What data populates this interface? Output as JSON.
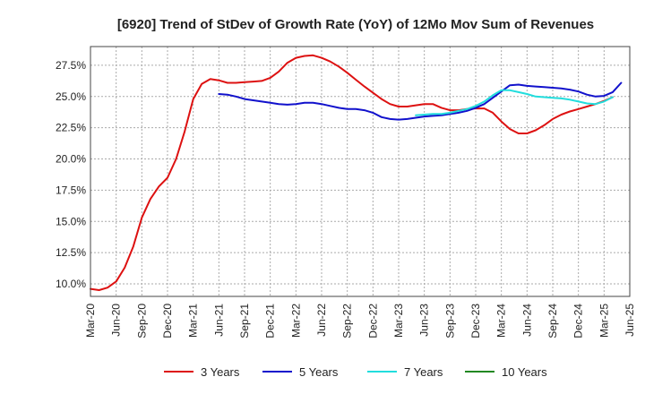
{
  "chart_data": {
    "type": "line",
    "title": "[6920]  Trend of StDev of Growth Rate (YoY) of 12Mo Mov Sum of Revenues",
    "xlabel": "",
    "ylabel": "",
    "ylim": [
      9.0,
      29.0
    ],
    "grid": true,
    "legend_position": "bottom",
    "x_ticks": [
      "Mar-20",
      "Jun-20",
      "Sep-20",
      "Dec-20",
      "Mar-21",
      "Jun-21",
      "Sep-21",
      "Dec-21",
      "Mar-22",
      "Jun-22",
      "Sep-22",
      "Dec-22",
      "Mar-23",
      "Jun-23",
      "Sep-23",
      "Dec-23",
      "Mar-24",
      "Jun-24",
      "Sep-24",
      "Dec-24",
      "Mar-25",
      "Jun-25"
    ],
    "y_ticks": [
      {
        "value": 10.0,
        "label": "10.0%"
      },
      {
        "value": 12.5,
        "label": "12.5%"
      },
      {
        "value": 15.0,
        "label": "15.0%"
      },
      {
        "value": 17.5,
        "label": "17.5%"
      },
      {
        "value": 20.0,
        "label": "20.0%"
      },
      {
        "value": 22.5,
        "label": "22.5%"
      },
      {
        "value": 25.0,
        "label": "25.0%"
      },
      {
        "value": 27.5,
        "label": "27.5%"
      }
    ],
    "series": [
      {
        "name": "3 Years",
        "color": "#dd1111",
        "start_index": 0,
        "values": [
          9.6,
          9.5,
          9.7,
          10.2,
          11.3,
          13.0,
          15.3,
          16.8,
          17.8,
          18.5,
          20.0,
          22.2,
          24.8,
          26.0,
          26.4,
          26.3,
          26.1,
          26.1,
          26.15,
          26.2,
          26.25,
          26.5,
          27.0,
          27.7,
          28.1,
          28.25,
          28.3,
          28.1,
          27.8,
          27.4,
          26.9,
          26.35,
          25.8,
          25.3,
          24.8,
          24.4,
          24.2,
          24.2,
          24.3,
          24.4,
          24.4,
          24.1,
          23.9,
          23.9,
          24.0,
          24.05,
          24.05,
          23.7,
          23.0,
          22.4,
          22.05,
          22.05,
          22.3,
          22.7,
          23.2,
          23.55,
          23.8,
          24.0,
          24.2,
          24.4,
          24.65,
          24.95
        ]
      },
      {
        "name": "5 Years",
        "color": "#1111cc",
        "start_index": 15,
        "values": [
          25.2,
          25.15,
          25.0,
          24.8,
          24.7,
          24.6,
          24.5,
          24.4,
          24.35,
          24.4,
          24.5,
          24.5,
          24.4,
          24.25,
          24.1,
          24.0,
          24.0,
          23.9,
          23.7,
          23.35,
          23.2,
          23.15,
          23.2,
          23.3,
          23.4,
          23.45,
          23.5,
          23.6,
          23.7,
          23.85,
          24.1,
          24.4,
          24.9,
          25.4,
          25.9,
          25.95,
          25.85,
          25.8,
          25.75,
          25.7,
          25.65,
          25.55,
          25.4,
          25.15,
          25.0,
          25.05,
          25.35,
          26.1
        ]
      },
      {
        "name": "7 Years",
        "color": "#22dddd",
        "start_index": 38,
        "values": [
          23.5,
          23.55,
          23.6,
          23.6,
          23.7,
          23.85,
          24.0,
          24.25,
          24.6,
          25.1,
          25.5,
          25.5,
          25.35,
          25.2,
          25.0,
          24.95,
          24.9,
          24.85,
          24.75,
          24.6,
          24.45,
          24.4,
          24.6,
          24.95
        ]
      },
      {
        "name": "10 Years",
        "color": "#228822",
        "start_index": 62,
        "values": []
      }
    ]
  }
}
